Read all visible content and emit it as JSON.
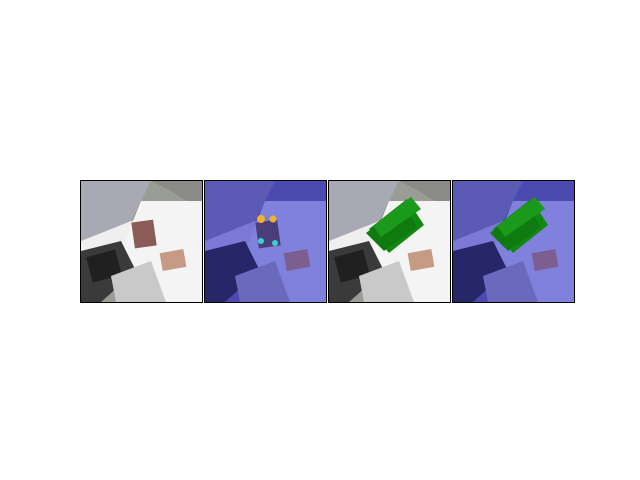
{
  "figure": {
    "panels": [
      {
        "name": "rgb-input-photo",
        "tint": "none",
        "overlay": "none"
      },
      {
        "name": "heatmap-photo",
        "tint": "blue",
        "overlay": "heatmap-points"
      },
      {
        "name": "grasp-prediction-photo",
        "tint": "none",
        "overlay": "green-grasp-rectangles"
      },
      {
        "name": "grasp-prediction-heatmap-photo",
        "tint": "blue",
        "overlay": "green-grasp-rectangles"
      }
    ],
    "colors": {
      "panel_border": "#000000",
      "grasp": "#118811",
      "blue_tint": "#3a3ab4"
    }
  }
}
